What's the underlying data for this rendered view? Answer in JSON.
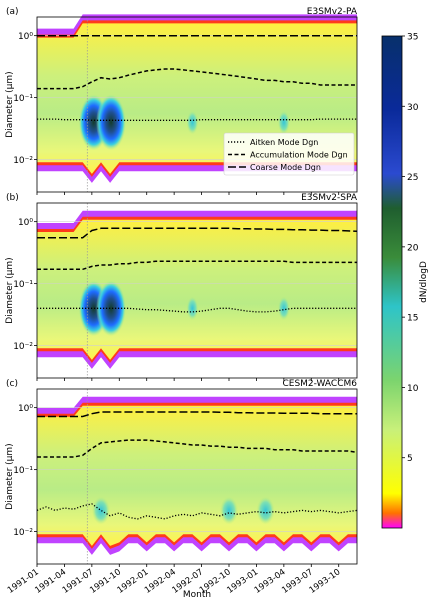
{
  "chart_data": {
    "type": "heatmap",
    "colorbar": {
      "label": "dN/dlogD",
      "ticks": [
        5,
        10,
        15,
        20,
        25,
        30,
        35
      ],
      "range": [
        0,
        35
      ],
      "colors": [
        "#ff00ff",
        "#ff8000",
        "#ffff00",
        "#a8e03c",
        "#2f6f2f",
        "#0080ff",
        "#08306b"
      ]
    },
    "x_ticks": [
      "1991-01",
      "1991-04",
      "1991-07",
      "1991-10",
      "1992-01",
      "1992-04",
      "1992-07",
      "1992-10",
      "1993-01",
      "1993-04",
      "1993-07",
      "1993-10"
    ],
    "x_label": "Month",
    "y_label": "Diameter (μm)",
    "y_scale": "log",
    "y_ticks": [
      "10⁰",
      "10⁻¹",
      "10⁻²"
    ],
    "eruption_month_index": 5.5,
    "legend": {
      "placement": "lower-right of panel (a)",
      "entries": [
        {
          "label": "Aitken Mode Dgn",
          "style": "dotted"
        },
        {
          "label": "Accumulation Mode Dgn",
          "style": "dashed"
        },
        {
          "label": "Coarse Mode Dgn",
          "style": "long-dashed"
        }
      ]
    },
    "panels": [
      {
        "tag": "(a)",
        "model": "E3SMv2-PA",
        "coarse_dgn": [
          1.0,
          1.0,
          1.0,
          1.0,
          1.0,
          1.0,
          1.0,
          1.0,
          1.0,
          1.0,
          1.0,
          1.0,
          1.0,
          1.0,
          1.0,
          1.0,
          1.0,
          1.0,
          1.0,
          1.0,
          1.0,
          1.0,
          1.0,
          1.0,
          1.0,
          1.0,
          1.0,
          1.0,
          1.0,
          1.0,
          1.0,
          1.0,
          1.0,
          1.0,
          1.0,
          1.0
        ],
        "accum_dgn": [
          0.14,
          0.14,
          0.14,
          0.14,
          0.14,
          0.15,
          0.18,
          0.21,
          0.2,
          0.21,
          0.23,
          0.25,
          0.27,
          0.28,
          0.29,
          0.29,
          0.28,
          0.27,
          0.26,
          0.25,
          0.24,
          0.23,
          0.22,
          0.21,
          0.2,
          0.19,
          0.19,
          0.18,
          0.18,
          0.17,
          0.17,
          0.16,
          0.16,
          0.16,
          0.16,
          0.16
        ],
        "aitken_dgn": [
          0.045,
          0.045,
          0.045,
          0.044,
          0.044,
          0.044,
          0.043,
          0.043,
          0.043,
          0.043,
          0.043,
          0.043,
          0.043,
          0.043,
          0.043,
          0.043,
          0.043,
          0.043,
          0.044,
          0.044,
          0.044,
          0.044,
          0.044,
          0.044,
          0.044,
          0.044,
          0.044,
          0.044,
          0.044,
          0.044,
          0.044,
          0.045,
          0.045,
          0.045,
          0.045,
          0.045
        ]
      },
      {
        "tag": "(b)",
        "model": "E3SMv2-SPA",
        "coarse_dgn": [
          0.55,
          0.55,
          0.55,
          0.55,
          0.55,
          0.55,
          0.72,
          0.78,
          0.78,
          0.78,
          0.78,
          0.78,
          0.78,
          0.78,
          0.78,
          0.78,
          0.78,
          0.78,
          0.78,
          0.78,
          0.78,
          0.78,
          0.77,
          0.77,
          0.76,
          0.76,
          0.75,
          0.75,
          0.74,
          0.74,
          0.73,
          0.73,
          0.72,
          0.72,
          0.71,
          0.7
        ],
        "accum_dgn": [
          0.17,
          0.17,
          0.17,
          0.17,
          0.17,
          0.17,
          0.19,
          0.2,
          0.2,
          0.21,
          0.21,
          0.22,
          0.22,
          0.23,
          0.23,
          0.23,
          0.23,
          0.23,
          0.23,
          0.23,
          0.23,
          0.23,
          0.23,
          0.23,
          0.23,
          0.23,
          0.23,
          0.23,
          0.22,
          0.22,
          0.22,
          0.22,
          0.22,
          0.22,
          0.22,
          0.22
        ],
        "aitken_dgn": [
          0.04,
          0.04,
          0.04,
          0.04,
          0.04,
          0.04,
          0.04,
          0.04,
          0.04,
          0.04,
          0.04,
          0.039,
          0.038,
          0.038,
          0.037,
          0.036,
          0.035,
          0.035,
          0.036,
          0.038,
          0.04,
          0.04,
          0.038,
          0.036,
          0.035,
          0.035,
          0.036,
          0.038,
          0.04,
          0.04,
          0.04,
          0.04,
          0.04,
          0.04,
          0.04,
          0.04
        ]
      },
      {
        "tag": "(c)",
        "model": "CESM2-WACCM6",
        "coarse_dgn": [
          0.72,
          0.72,
          0.72,
          0.72,
          0.72,
          0.72,
          0.8,
          0.85,
          0.85,
          0.85,
          0.85,
          0.85,
          0.85,
          0.85,
          0.85,
          0.85,
          0.85,
          0.85,
          0.85,
          0.85,
          0.84,
          0.84,
          0.83,
          0.83,
          0.82,
          0.82,
          0.82,
          0.81,
          0.81,
          0.81,
          0.81,
          0.8,
          0.8,
          0.8,
          0.8,
          0.8
        ],
        "accum_dgn": [
          0.16,
          0.16,
          0.16,
          0.16,
          0.16,
          0.17,
          0.22,
          0.27,
          0.28,
          0.29,
          0.3,
          0.3,
          0.3,
          0.29,
          0.28,
          0.27,
          0.26,
          0.25,
          0.25,
          0.24,
          0.24,
          0.23,
          0.23,
          0.22,
          0.22,
          0.22,
          0.21,
          0.21,
          0.21,
          0.2,
          0.2,
          0.2,
          0.2,
          0.2,
          0.2,
          0.19
        ],
        "aitken_dgn": [
          0.022,
          0.025,
          0.022,
          0.024,
          0.023,
          0.026,
          0.028,
          0.022,
          0.018,
          0.02,
          0.017,
          0.016,
          0.018,
          0.017,
          0.016,
          0.018,
          0.019,
          0.018,
          0.02,
          0.019,
          0.018,
          0.02,
          0.019,
          0.02,
          0.021,
          0.02,
          0.021,
          0.02,
          0.021,
          0.022,
          0.021,
          0.022,
          0.021,
          0.02,
          0.021,
          0.022
        ]
      }
    ]
  }
}
